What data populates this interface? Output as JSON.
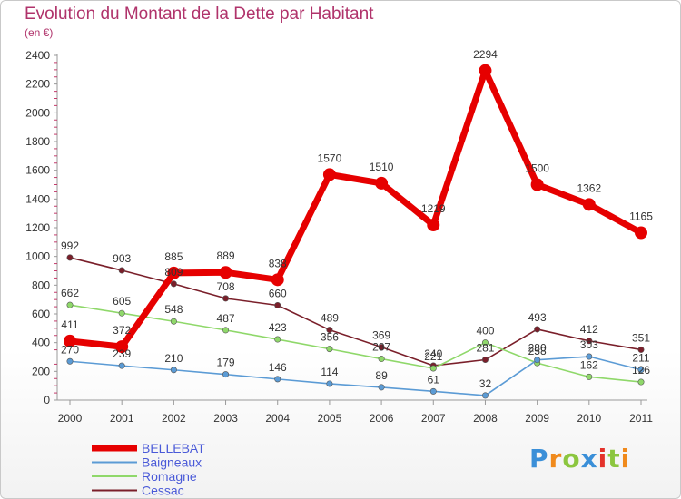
{
  "header": {
    "title": "Evolution du Montant de la Dette par Habitant",
    "subtitle": "(en €)"
  },
  "logo": {
    "text": "Proxiti",
    "colors": [
      "#3a8fd8",
      "#f08a1c",
      "#8cc63f",
      "#3a8fd8",
      "#e4322b",
      "#8cc63f",
      "#f08a1c"
    ]
  },
  "chart_data": {
    "type": "line",
    "x": [
      "2000",
      "2001",
      "2002",
      "2003",
      "2004",
      "2005",
      "2006",
      "2007",
      "2008",
      "2009",
      "2010",
      "2011"
    ],
    "ylim": [
      0,
      2400
    ],
    "yticks": [
      0,
      200,
      400,
      600,
      800,
      1000,
      1200,
      1400,
      1600,
      1800,
      2000,
      2200,
      2400
    ],
    "grid": false,
    "legend": "bottom-left",
    "series": [
      {
        "name": "Cessac",
        "color": "#7a1f2a",
        "values": [
          992,
          903,
          809,
          708,
          660,
          489,
          369,
          240,
          281,
          493,
          412,
          351
        ],
        "labels": [
          "992",
          "903",
          "809",
          "708",
          "660",
          "489",
          "369",
          "240",
          "281",
          "493",
          "412",
          "351"
        ]
      },
      {
        "name": "Romagne",
        "color": "#8fd86a",
        "values": [
          662,
          605,
          548,
          487,
          423,
          356,
          287,
          221,
          400,
          258,
          162,
          126
        ],
        "labels": [
          "662",
          "605",
          "548",
          "487",
          "423",
          "356",
          "287",
          "221",
          "400",
          "258",
          "162",
          "126"
        ]
      },
      {
        "name": "Baigneaux",
        "color": "#5b9bd5",
        "values": [
          270,
          239,
          210,
          179,
          146,
          114,
          89,
          61,
          32,
          280,
          303,
          211
        ],
        "labels": [
          "270",
          "239",
          "210",
          "179",
          "146",
          "114",
          "89",
          "61",
          "32",
          "280",
          "303",
          "211"
        ]
      },
      {
        "name": "BELLEBAT",
        "color": "#e60000",
        "values": [
          411,
          372,
          885,
          889,
          838,
          1570,
          1510,
          1219,
          2294,
          1500,
          1362,
          1165
        ],
        "labels": [
          "411",
          "372",
          "885",
          "889",
          "838",
          "1570",
          "1510",
          "1219",
          "2294",
          "1500",
          "1362",
          "1165"
        ]
      }
    ]
  }
}
